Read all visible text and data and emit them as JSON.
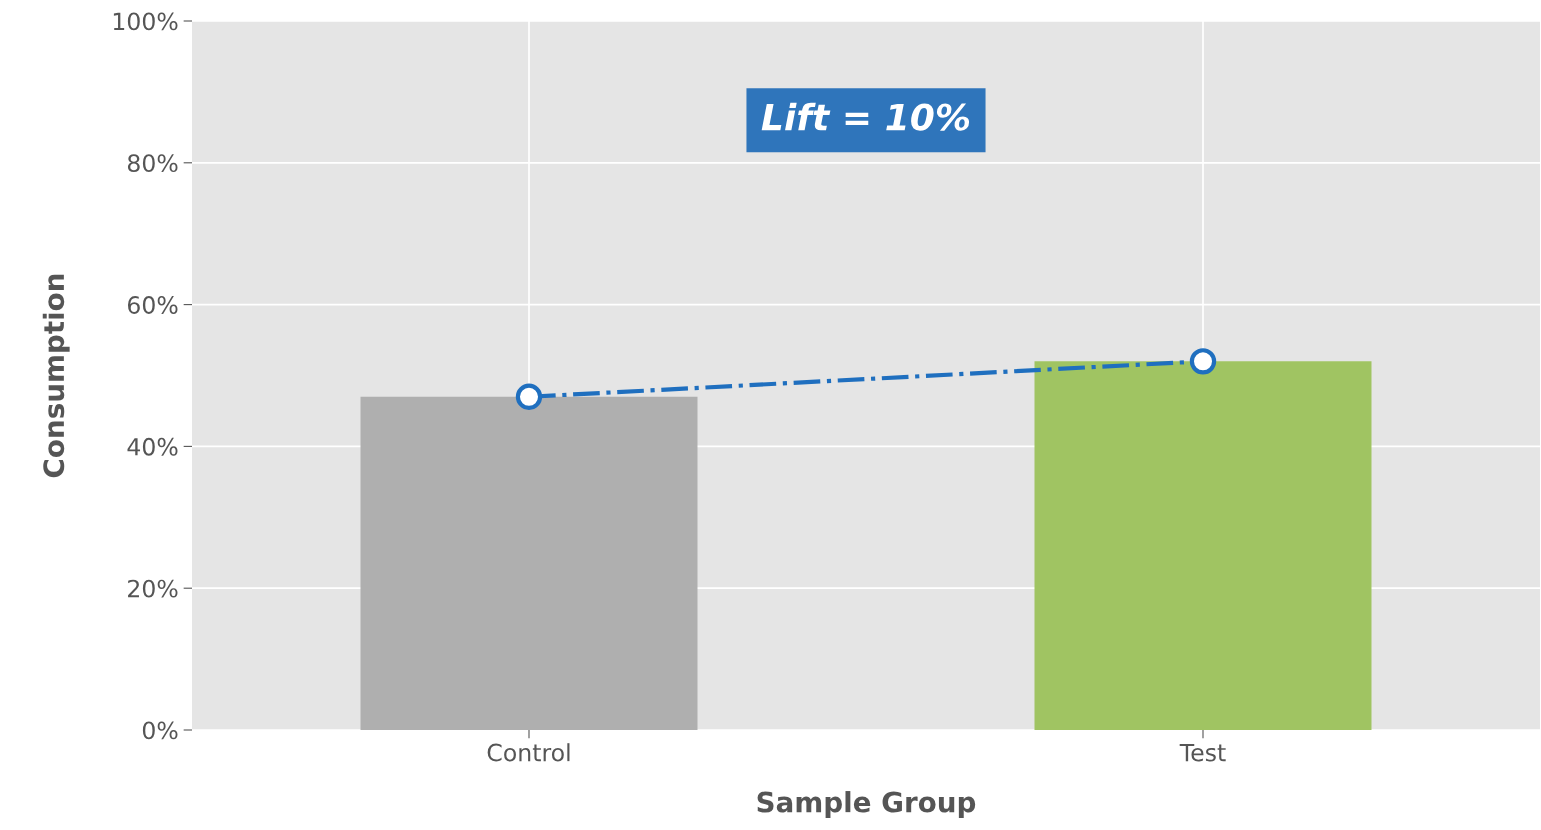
{
  "chart_data": {
    "type": "bar",
    "xlabel": "Sample Group",
    "ylabel": "Consumption",
    "categories": [
      "Control",
      "Test"
    ],
    "series": [
      {
        "colors": [
          "#afafaf",
          "#a0c462"
        ],
        "values": [
          47,
          52
        ]
      },
      {
        "type": "line",
        "color": "#1f6fbf",
        "values": [
          47,
          52
        ],
        "marker": "circle",
        "line_style": "dashdot"
      }
    ],
    "ylim": [
      0,
      100
    ],
    "yticks": [
      {
        "value": 0,
        "label": "0%"
      },
      {
        "value": 20,
        "label": "20%"
      },
      {
        "value": 40,
        "label": "40%"
      },
      {
        "value": 60,
        "label": "60%"
      },
      {
        "value": 80,
        "label": "80%"
      },
      {
        "value": 100,
        "label": "100%"
      }
    ],
    "grid": true,
    "annotations": [
      "Lift = 10%"
    ]
  }
}
